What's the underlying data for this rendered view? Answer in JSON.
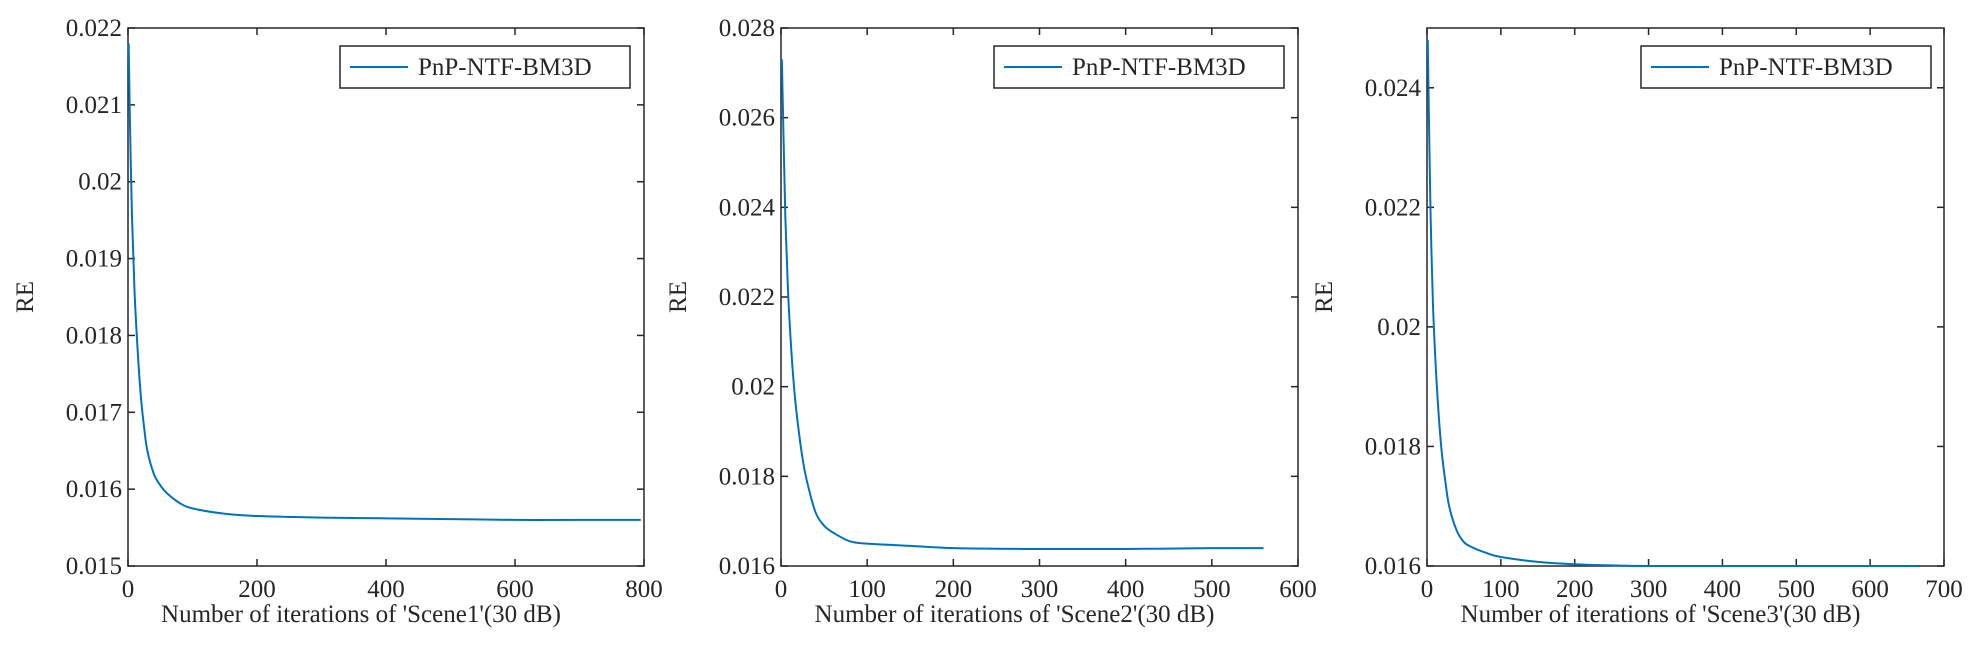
{
  "colors": {
    "line": "#0072BD",
    "axis": "#262626",
    "background": "#ffffff"
  },
  "chart_data": [
    {
      "type": "line",
      "xlabel": "Number of iterations of 'Scene1'(30 dB)",
      "ylabel": "RE",
      "xlim": [
        0,
        800
      ],
      "ylim": [
        0.015,
        0.022
      ],
      "xticks": [
        0,
        200,
        400,
        600,
        800
      ],
      "xtick_labels": [
        "0",
        "200",
        "400",
        "600",
        "800"
      ],
      "yticks": [
        0.015,
        0.016,
        0.017,
        0.018,
        0.019,
        0.02,
        0.021,
        0.022
      ],
      "ytick_labels": [
        "0.015",
        "0.016",
        "0.017",
        "0.018",
        "0.019",
        "0.02",
        "0.021",
        "0.022"
      ],
      "grid": false,
      "legend_position": "top-right",
      "series": [
        {
          "name": "PnP-NTF-BM3D",
          "x": [
            1,
            3,
            6,
            10,
            15,
            20,
            25,
            30,
            40,
            50,
            60,
            80,
            100,
            150,
            200,
            300,
            400,
            500,
            600,
            700,
            795
          ],
          "y": [
            0.0218,
            0.0208,
            0.0196,
            0.0186,
            0.0178,
            0.0172,
            0.0168,
            0.0165,
            0.0162,
            0.01605,
            0.01595,
            0.01582,
            0.01575,
            0.01568,
            0.01565,
            0.01563,
            0.01562,
            0.01561,
            0.0156,
            0.0156,
            0.0156
          ]
        }
      ]
    },
    {
      "type": "line",
      "xlabel": "Number of iterations of 'Scene2'(30 dB)",
      "ylabel": "RE",
      "xlim": [
        0,
        600
      ],
      "ylim": [
        0.016,
        0.028
      ],
      "xticks": [
        0,
        100,
        200,
        300,
        400,
        500,
        600
      ],
      "xtick_labels": [
        "0",
        "100",
        "200",
        "300",
        "400",
        "500",
        "600"
      ],
      "yticks": [
        0.016,
        0.018,
        0.02,
        0.022,
        0.024,
        0.026,
        0.028
      ],
      "ytick_labels": [
        "0.016",
        "0.018",
        "0.02",
        "0.022",
        "0.024",
        "0.026",
        "0.028"
      ],
      "grid": false,
      "legend_position": "top-right",
      "series": [
        {
          "name": "PnP-NTF-BM3D",
          "x": [
            1,
            3,
            5,
            8,
            12,
            16,
            20,
            25,
            30,
            40,
            50,
            60,
            80,
            100,
            150,
            200,
            300,
            400,
            500,
            560
          ],
          "y": [
            0.0273,
            0.0255,
            0.0238,
            0.0222,
            0.0208,
            0.0198,
            0.0191,
            0.0184,
            0.0179,
            0.0172,
            0.0169,
            0.01675,
            0.01655,
            0.0165,
            0.01645,
            0.0164,
            0.01638,
            0.01638,
            0.0164,
            0.0164
          ]
        }
      ]
    },
    {
      "type": "line",
      "xlabel": "Number of iterations of 'Scene3'(30 dB)",
      "ylabel": "RE",
      "xlim": [
        0,
        700
      ],
      "ylim": [
        0.016,
        0.025
      ],
      "xticks": [
        0,
        100,
        200,
        300,
        400,
        500,
        600,
        700
      ],
      "xtick_labels": [
        "0",
        "100",
        "200",
        "300",
        "400",
        "500",
        "600",
        "700"
      ],
      "yticks": [
        0.016,
        0.018,
        0.02,
        0.022,
        0.024
      ],
      "ytick_labels": [
        "0.016",
        "0.018",
        "0.02",
        "0.022",
        "0.024"
      ],
      "grid": false,
      "legend_position": "top-right",
      "series": [
        {
          "name": "PnP-NTF-BM3D",
          "x": [
            1,
            3,
            5,
            8,
            12,
            16,
            20,
            25,
            30,
            40,
            50,
            60,
            80,
            100,
            150,
            200,
            250,
            300,
            400,
            500,
            600,
            665
          ],
          "y": [
            0.0248,
            0.0232,
            0.0218,
            0.0204,
            0.0193,
            0.0185,
            0.0179,
            0.0174,
            0.017,
            0.0166,
            0.0164,
            0.01632,
            0.01622,
            0.01615,
            0.01607,
            0.01603,
            0.01601,
            0.016,
            0.016,
            0.016,
            0.016,
            0.016
          ]
        }
      ]
    }
  ]
}
